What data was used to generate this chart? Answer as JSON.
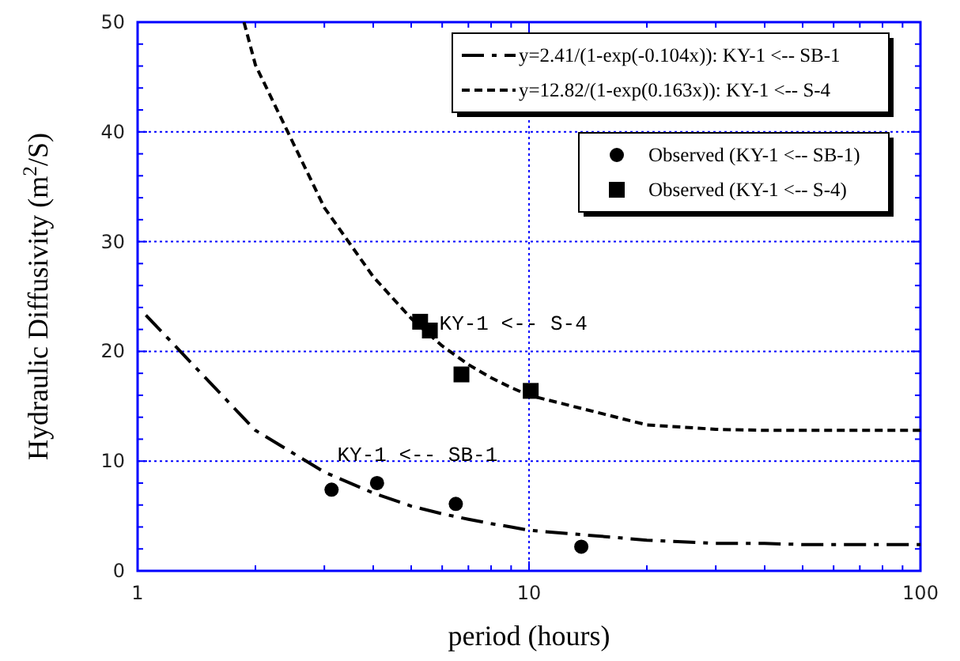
{
  "chart_data": {
    "type": "line",
    "xlabel": "period (hours)",
    "ylabel": "Hydraulic Diffusivity (m$^{2}$/S)",
    "log": "x",
    "grid": true,
    "legend": "top right",
    "xlim": [
      1,
      100
    ],
    "ylim": [
      0,
      50
    ],
    "xticks": [
      1,
      {
        "value": 2,
        "label": null
      },
      {
        "value": 3,
        "label": null
      },
      {
        "value": 4,
        "label": null
      },
      {
        "value": 5,
        "label": null
      },
      {
        "value": 6,
        "label": null
      },
      {
        "value": 7,
        "label": null
      },
      {
        "value": 8,
        "label": null
      },
      {
        "value": 9,
        "label": null
      },
      10,
      {
        "value": 20,
        "label": null
      },
      {
        "value": 30,
        "label": null
      },
      {
        "value": 40,
        "label": null
      },
      {
        "value": 50,
        "label": null
      },
      {
        "value": 60,
        "label": null
      },
      {
        "value": 70,
        "label": null
      },
      {
        "value": 80,
        "label": null
      },
      {
        "value": 90,
        "label": null
      },
      100
    ],
    "yticks": [
      0,
      {
        "value": 2,
        "label": null
      },
      {
        "value": 4,
        "label": null
      },
      {
        "value": 6,
        "label": null
      },
      {
        "value": 8,
        "label": null
      },
      10,
      {
        "value": 12,
        "label": null
      },
      {
        "value": 14,
        "label": null
      },
      {
        "value": 16,
        "label": null
      },
      {
        "value": 18,
        "label": null
      },
      20,
      {
        "value": 22,
        "label": null
      },
      {
        "value": 24,
        "label": null
      },
      {
        "value": 26,
        "label": null
      },
      {
        "value": 28,
        "label": null
      },
      30,
      {
        "value": 32,
        "label": null
      },
      {
        "value": 34,
        "label": null
      },
      {
        "value": 36,
        "label": null
      },
      {
        "value": 38,
        "label": null
      },
      40,
      {
        "value": 42,
        "label": null
      },
      {
        "value": 44,
        "label": null
      },
      {
        "value": 46,
        "label": null
      },
      {
        "value": 48,
        "label": null
      },
      50
    ],
    "series": [
      {
        "name": "y=2.41/(1-exp(-0.104x)):  KY-1 <-- SB-1",
        "line_style": "dashed",
        "marker": "none",
        "color": "#000000",
        "x": [
          1.05,
          2,
          3,
          4,
          5,
          6,
          7,
          8,
          9,
          10,
          20,
          30,
          40,
          50,
          60,
          70,
          80,
          90,
          100
        ],
        "values": [
          23.3,
          12.8,
          9.0,
          7.1,
          5.9,
          5.2,
          4.7,
          4.3,
          4.0,
          3.7,
          2.8,
          2.5,
          2.5,
          2.4,
          2.4,
          2.4,
          2.4,
          2.4,
          2.4
        ]
      },
      {
        "name": "y=12.82/(1-exp(0.163x)):  KY-1 <-- S-4",
        "line_style": "dashed",
        "marker": "none",
        "color": "#000000",
        "x": [
          1.87,
          2,
          3,
          4,
          5,
          6,
          7,
          8,
          9,
          10,
          20,
          30,
          40,
          50,
          60,
          70,
          80,
          90,
          100
        ],
        "values": [
          50,
          46.1,
          33.1,
          26.8,
          23.0,
          20.5,
          18.8,
          17.6,
          16.7,
          16.0,
          13.3,
          12.9,
          12.8,
          12.8,
          12.8,
          12.8,
          12.8,
          12.8,
          12.8
        ]
      },
      {
        "name": "Observed (KY-1 <-- SB-1)",
        "type": "scatter",
        "marker": "circle",
        "color": "#000000",
        "x": [
          3.13,
          4.09,
          6.5,
          13.6
        ],
        "values": [
          7.4,
          8.0,
          6.1,
          2.2
        ]
      },
      {
        "name": "Observed (KY-1 <-- S-4)",
        "type": "scatter",
        "marker": "square",
        "color": "#000000",
        "x": [
          5.27,
          5.58,
          6.72,
          10.1
        ],
        "values": [
          22.7,
          21.9,
          17.9,
          16.4
        ]
      }
    ],
    "annotations": [
      {
        "text": "KY-1 <-- S-4",
        "x": 5.9,
        "y": 22
      },
      "KY-1 <-- SB-1"
    ]
  }
}
